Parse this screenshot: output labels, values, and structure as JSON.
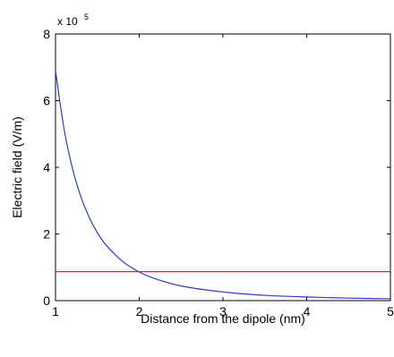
{
  "chart_data": {
    "type": "line",
    "title": "",
    "xlabel": "Distance from the dipole (nm)",
    "ylabel": "Electric field (V/m)",
    "xlim": [
      1,
      5
    ],
    "ylim": [
      0,
      8
    ],
    "y_scale_label": "x 10",
    "y_scale_exponent": "5",
    "y_multiplier": 100000,
    "grid": false,
    "legend": "none",
    "x_ticks": [
      1,
      2,
      3,
      4,
      5
    ],
    "y_ticks": [
      0,
      2,
      4,
      6,
      8
    ],
    "series": [
      {
        "color": "#2b3dbf",
        "x": [
          1.0,
          1.1,
          1.2,
          1.3,
          1.4,
          1.5,
          1.6,
          1.8,
          2.0,
          2.2,
          2.5,
          3.0,
          3.5,
          4.0,
          4.5,
          5.0
        ],
        "y": [
          6.9,
          5.18,
          3.99,
          3.14,
          2.51,
          2.04,
          1.68,
          1.18,
          0.86,
          0.65,
          0.44,
          0.26,
          0.16,
          0.11,
          0.076,
          0.055
        ]
      },
      {
        "color": "#e0241f",
        "x": [
          1.0,
          5.0
        ],
        "y": [
          0.87,
          0.87
        ]
      }
    ]
  }
}
